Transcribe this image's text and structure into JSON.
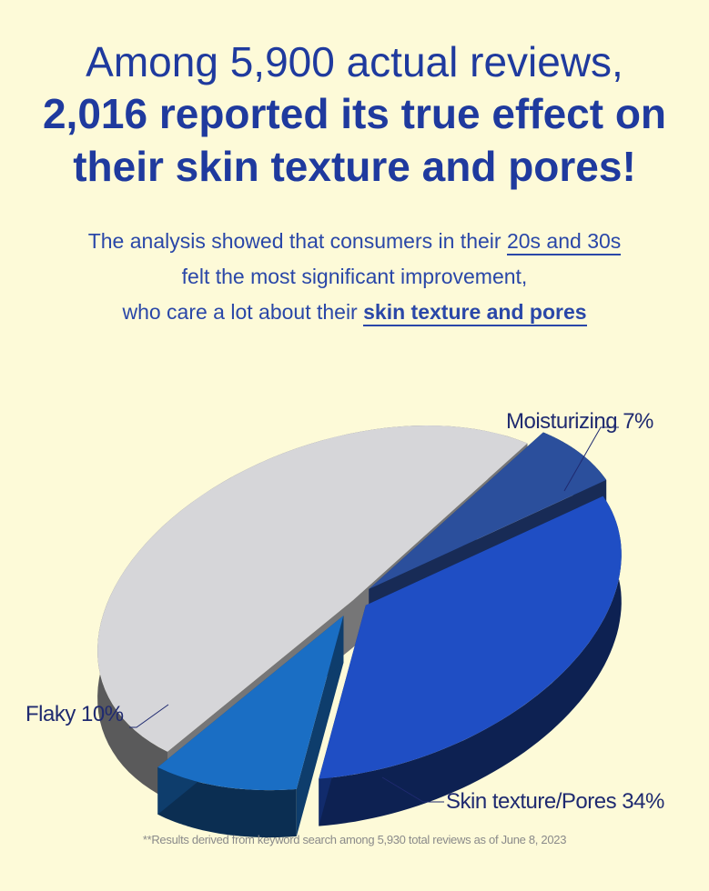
{
  "headline": {
    "line1": "Among 5,900 actual reviews,",
    "line2": "2,016 reported its true effect on",
    "line3": "their skin texture and pores!"
  },
  "subtitle": {
    "part1": "The analysis showed that consumers in their ",
    "highlight1": "20s and 30s",
    "line2": "felt the most significant improvement,",
    "part3": "who care a lot about their ",
    "highlight2": "skin texture and pores"
  },
  "chart_data": {
    "type": "pie",
    "style": "3d-exploded",
    "slices": [
      {
        "name": "Moisturizing",
        "label": "Moisturizing 7%",
        "value": 7,
        "color": "#2b4f9c"
      },
      {
        "name": "Skin texture/Pores",
        "label": "Skin texture/Pores 34%",
        "value": 34,
        "color": "#1f4ec4"
      },
      {
        "name": "Flaky",
        "label": "Flaky 10%",
        "value": 10,
        "color": "#1a6ec4"
      },
      {
        "name": "",
        "label": "",
        "value": 49,
        "color": "#d6d6d9"
      }
    ]
  },
  "footnote": "**Results derived from keyword search among 5,930 total reviews as of June 8, 2023"
}
